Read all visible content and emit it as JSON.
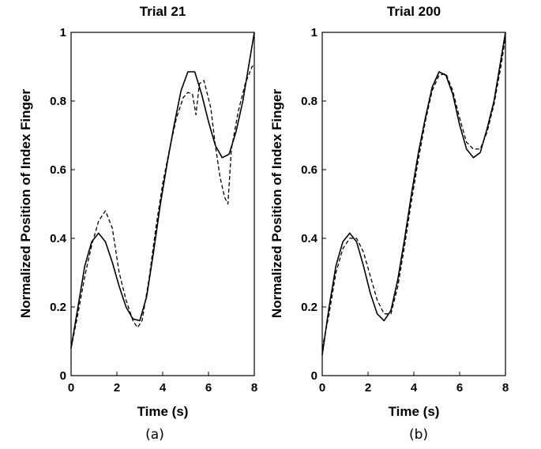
{
  "captions": [
    "(a)",
    "(b)"
  ],
  "chart_data": [
    {
      "type": "line",
      "title": "Trial 21",
      "xlabel": "Time (s)",
      "ylabel": "Normalized Position of Index Finger",
      "xlim": [
        0,
        8
      ],
      "ylim": [
        0,
        1
      ],
      "xticks": [
        "0",
        "2",
        "4",
        "6",
        "8"
      ],
      "yticks": [
        "0",
        "0.2",
        "0.4",
        "0.6",
        "0.8",
        "1"
      ],
      "grid": false,
      "series": [
        {
          "style": "solid",
          "x": [
            0,
            0.3,
            0.6,
            0.9,
            1.2,
            1.5,
            1.8,
            2.1,
            2.4,
            2.7,
            3.0,
            3.3,
            3.6,
            3.9,
            4.2,
            4.5,
            4.8,
            5.1,
            5.4,
            5.7,
            6.0,
            6.3,
            6.6,
            6.9,
            7.2,
            7.5,
            7.8,
            8.0
          ],
          "y": [
            0.08,
            0.2,
            0.32,
            0.39,
            0.415,
            0.39,
            0.33,
            0.26,
            0.2,
            0.165,
            0.16,
            0.23,
            0.36,
            0.5,
            0.62,
            0.73,
            0.83,
            0.885,
            0.885,
            0.82,
            0.74,
            0.67,
            0.635,
            0.645,
            0.71,
            0.8,
            0.92,
            1.0
          ]
        },
        {
          "style": "dashed",
          "x": [
            0,
            0.3,
            0.6,
            0.9,
            1.2,
            1.5,
            1.8,
            2.1,
            2.4,
            2.7,
            2.9,
            3.1,
            3.4,
            3.7,
            4.0,
            4.3,
            4.6,
            4.9,
            5.1,
            5.3,
            5.45,
            5.6,
            5.8,
            6.1,
            6.3,
            6.5,
            6.7,
            6.85,
            7.0,
            7.3,
            7.6,
            7.9,
            8.0
          ],
          "y": [
            0.08,
            0.18,
            0.29,
            0.38,
            0.45,
            0.48,
            0.43,
            0.3,
            0.22,
            0.16,
            0.14,
            0.16,
            0.28,
            0.43,
            0.56,
            0.66,
            0.75,
            0.81,
            0.825,
            0.82,
            0.76,
            0.85,
            0.86,
            0.78,
            0.67,
            0.58,
            0.52,
            0.5,
            0.66,
            0.77,
            0.85,
            0.9,
            0.905
          ]
        }
      ]
    },
    {
      "type": "line",
      "title": "Trial 200",
      "xlabel": "Time (s)",
      "ylabel": "Normalized Position of Index Finger",
      "xlim": [
        0,
        8
      ],
      "ylim": [
        0,
        1
      ],
      "xticks": [
        "0",
        "2",
        "4",
        "6",
        "8"
      ],
      "yticks": [
        "0",
        "0.2",
        "0.4",
        "0.6",
        "0.8",
        "1"
      ],
      "grid": false,
      "series": [
        {
          "style": "solid",
          "x": [
            0,
            0.3,
            0.6,
            0.9,
            1.2,
            1.5,
            1.8,
            2.1,
            2.4,
            2.7,
            3.0,
            3.3,
            3.6,
            3.9,
            4.2,
            4.5,
            4.8,
            5.1,
            5.4,
            5.7,
            6.0,
            6.3,
            6.6,
            6.9,
            7.2,
            7.5,
            7.8,
            8.0
          ],
          "y": [
            0.06,
            0.2,
            0.32,
            0.39,
            0.415,
            0.39,
            0.32,
            0.24,
            0.18,
            0.16,
            0.19,
            0.28,
            0.4,
            0.53,
            0.65,
            0.75,
            0.84,
            0.885,
            0.875,
            0.82,
            0.73,
            0.66,
            0.635,
            0.65,
            0.72,
            0.8,
            0.92,
            1.0
          ]
        },
        {
          "style": "dashed",
          "x": [
            0,
            0.3,
            0.6,
            0.9,
            1.2,
            1.5,
            1.8,
            2.1,
            2.4,
            2.7,
            3.0,
            3.3,
            3.6,
            3.9,
            4.2,
            4.5,
            4.8,
            5.1,
            5.4,
            5.7,
            6.0,
            6.3,
            6.6,
            6.9,
            7.2,
            7.5,
            7.8,
            8.0
          ],
          "y": [
            0.08,
            0.18,
            0.3,
            0.37,
            0.4,
            0.4,
            0.36,
            0.29,
            0.22,
            0.18,
            0.18,
            0.26,
            0.38,
            0.51,
            0.63,
            0.74,
            0.83,
            0.875,
            0.88,
            0.83,
            0.75,
            0.68,
            0.66,
            0.66,
            0.71,
            0.79,
            0.9,
            0.985
          ]
        }
      ]
    }
  ]
}
